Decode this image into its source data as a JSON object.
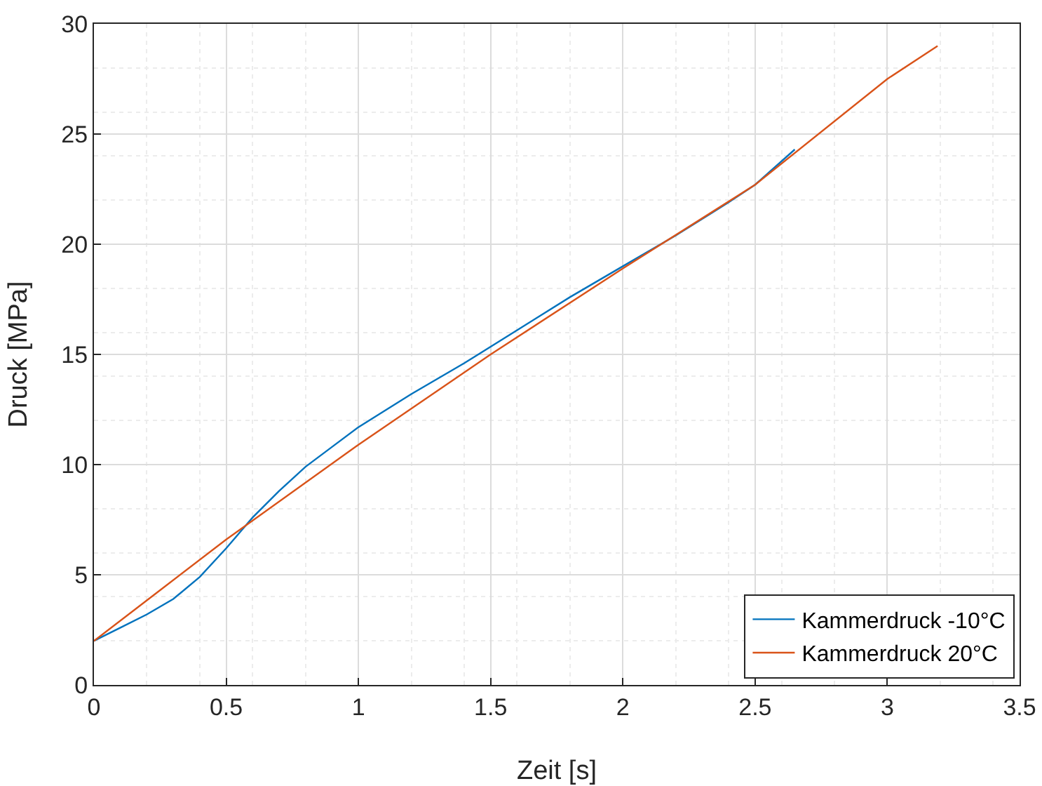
{
  "chart_data": {
    "type": "line",
    "xlabel": "Zeit [s]",
    "ylabel": "Druck [MPa]",
    "xlim": [
      0,
      3.5
    ],
    "xticks": [
      0,
      0.5,
      1,
      1.5,
      2,
      2.5,
      3,
      3.5
    ],
    "ylim": [
      0,
      30
    ],
    "yticks": [
      0,
      5,
      10,
      15,
      20,
      25,
      30
    ],
    "grid": true,
    "legend": "bottom right",
    "marker": "none",
    "line_style": "solid",
    "series": [
      {
        "name": "Kammerdruck -10°C",
        "color": "#0072bd",
        "x": [
          0,
          0.1,
          0.2,
          0.3,
          0.4,
          0.5,
          0.55,
          0.6,
          0.7,
          0.8,
          0.9,
          1.0,
          1.2,
          1.4,
          1.6,
          1.8,
          2.0,
          2.2,
          2.4,
          2.5,
          2.65
        ],
        "values": [
          2,
          2.6,
          3.2,
          3.9,
          4.9,
          6.2,
          6.9,
          7.6,
          8.8,
          9.9,
          10.8,
          11.7,
          13.2,
          14.6,
          16.1,
          17.6,
          19.0,
          20.4,
          21.9,
          22.7,
          24.3
        ]
      },
      {
        "name": "Kammerdruck 20°C",
        "color": "#d95319",
        "x": [
          0,
          0.25,
          0.5,
          1,
          1.5,
          2,
          2.5,
          3,
          3.19
        ],
        "values": [
          2,
          4.3,
          6.6,
          10.9,
          15.0,
          18.9,
          22.7,
          27.5,
          29.0
        ]
      }
    ]
  }
}
